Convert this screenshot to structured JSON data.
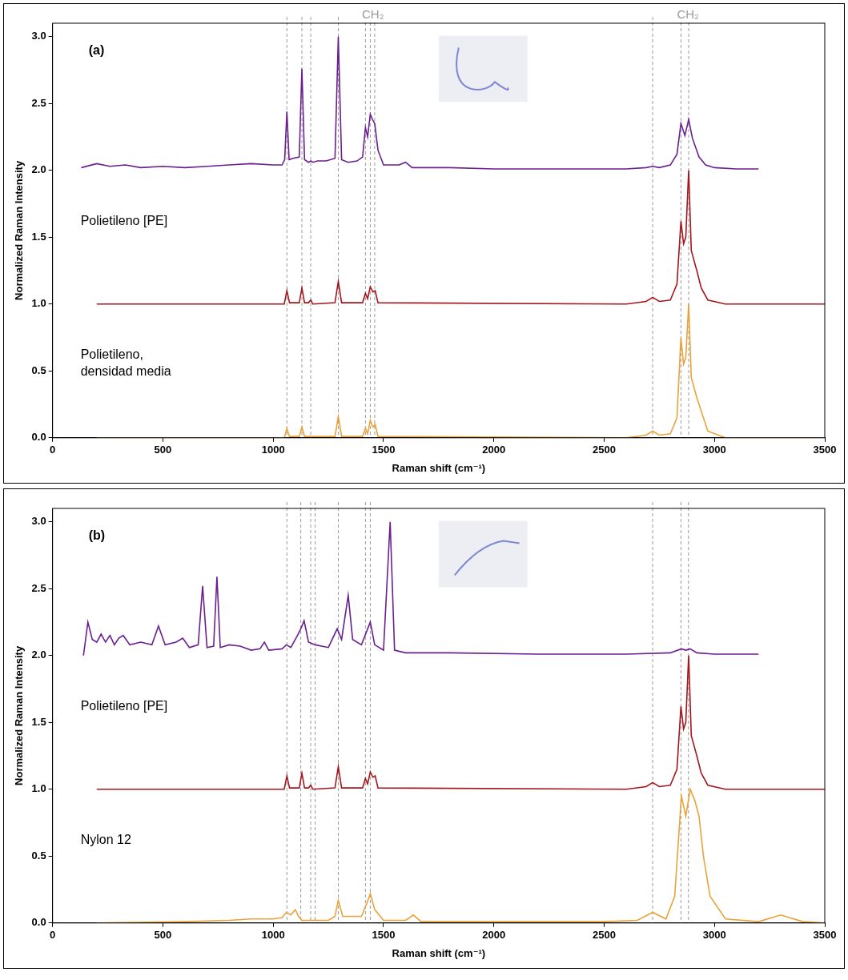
{
  "chart_data": [
    {
      "type": "line",
      "title": "(a)",
      "xlabel": "Raman shift (cm⁻¹)",
      "ylabel": "Normalized Raman Intensity",
      "xlim": [
        0,
        3500
      ],
      "xticks": [
        0,
        500,
        1000,
        1500,
        2000,
        2500,
        3000,
        3500
      ],
      "ylim": [
        0,
        3.1
      ],
      "yticks": [
        {
          "value": 0,
          "label": "0.0"
        },
        0.5,
        {
          "value": 1,
          "label": "1.0"
        },
        1.5,
        {
          "value": 2,
          "label": "2.0"
        },
        2.5,
        {
          "value": 3,
          "label": "3.0"
        }
      ],
      "grid": false,
      "reference_lines": [
        1062,
        1130,
        1170,
        1295,
        1418,
        1440,
        1460,
        2720,
        2848,
        2883
      ],
      "annotations": [
        {
          "text": "CH₂",
          "x": 1452
        },
        {
          "text": "CH₂",
          "x": 2880
        }
      ],
      "series": [
        {
          "color": "#6a1f8e",
          "x": [
            130,
            200,
            260,
            330,
            400,
            500,
            600,
            700,
            800,
            900,
            1000,
            1040,
            1052,
            1062,
            1072,
            1090,
            1118,
            1130,
            1142,
            1160,
            1170,
            1180,
            1200,
            1240,
            1280,
            1295,
            1310,
            1340,
            1380,
            1405,
            1418,
            1428,
            1440,
            1450,
            1460,
            1475,
            1500,
            1570,
            1600,
            1630,
            1800,
            2000,
            2200,
            2400,
            2600,
            2690,
            2720,
            2750,
            2800,
            2830,
            2848,
            2866,
            2883,
            2900,
            2930,
            2960,
            3000,
            3100,
            3200
          ],
          "values": [
            2.02,
            2.05,
            2.03,
            2.04,
            2.02,
            2.03,
            2.02,
            2.03,
            2.04,
            2.05,
            2.04,
            2.04,
            2.08,
            2.44,
            2.08,
            2.09,
            2.1,
            2.76,
            2.08,
            2.06,
            2.07,
            2.06,
            2.07,
            2.07,
            2.09,
            3.0,
            2.08,
            2.06,
            2.07,
            2.1,
            2.32,
            2.25,
            2.42,
            2.38,
            2.35,
            2.15,
            2.04,
            2.04,
            2.06,
            2.02,
            2.02,
            2.01,
            2.01,
            2.01,
            2.01,
            2.02,
            2.03,
            2.02,
            2.04,
            2.12,
            2.35,
            2.26,
            2.38,
            2.24,
            2.1,
            2.04,
            2.02,
            2.01,
            2.01
          ]
        },
        {
          "name": "Polietileno [PE]",
          "color": "#a3161c",
          "x": [
            200,
            500,
            1000,
            1050,
            1062,
            1074,
            1118,
            1130,
            1142,
            1160,
            1170,
            1180,
            1280,
            1295,
            1310,
            1405,
            1418,
            1428,
            1440,
            1452,
            1462,
            1475,
            2600,
            2690,
            2720,
            2750,
            2800,
            2830,
            2848,
            2860,
            2870,
            2883,
            2895,
            2920,
            2940,
            2970,
            3050,
            3500
          ],
          "values": [
            1.0,
            1.0,
            1.0,
            1.0,
            1.1,
            1.01,
            1.01,
            1.12,
            1.01,
            1.01,
            1.03,
            1.0,
            1.01,
            1.17,
            1.01,
            1.01,
            1.08,
            1.04,
            1.13,
            1.09,
            1.1,
            1.01,
            1.0,
            1.02,
            1.05,
            1.02,
            1.03,
            1.15,
            1.62,
            1.45,
            1.5,
            2.0,
            1.4,
            1.25,
            1.12,
            1.03,
            1.0,
            1.0
          ]
        },
        {
          "name": "Polietileno, densidad media",
          "color": "#eaa23a",
          "x": [
            200,
            500,
            1000,
            1050,
            1062,
            1074,
            1118,
            1130,
            1142,
            1280,
            1295,
            1310,
            1405,
            1418,
            1428,
            1440,
            1452,
            1462,
            1475,
            2600,
            2690,
            2720,
            2750,
            2800,
            2830,
            2848,
            2860,
            2870,
            2883,
            2895,
            2920,
            2940,
            2970,
            3050,
            3500
          ],
          "values": [
            0,
            0,
            0,
            0,
            0.07,
            0.01,
            0.01,
            0.08,
            0.01,
            0.01,
            0.16,
            0.01,
            0.01,
            0.07,
            0.03,
            0.13,
            0.08,
            0.1,
            0.01,
            0,
            0.02,
            0.05,
            0.02,
            0.03,
            0.15,
            0.75,
            0.55,
            0.6,
            1.0,
            0.45,
            0.3,
            0.2,
            0.05,
            0,
            0
          ]
        }
      ]
    },
    {
      "type": "line",
      "title": "(b)",
      "xlabel": "Raman shift (cm⁻¹)",
      "ylabel": "Normalized Raman Intensity",
      "xlim": [
        0,
        3500
      ],
      "xticks": [
        0,
        500,
        1000,
        1500,
        2000,
        2500,
        3000,
        3500
      ],
      "ylim": [
        0,
        3.1
      ],
      "yticks": [
        {
          "value": 0,
          "label": "0.0"
        },
        0.5,
        {
          "value": 1,
          "label": "1.0"
        },
        1.5,
        {
          "value": 2,
          "label": "2.0"
        },
        2.5,
        {
          "value": 3,
          "label": "3.0"
        }
      ],
      "grid": false,
      "reference_lines": [
        1062,
        1125,
        1170,
        1190,
        1295,
        1418,
        1440,
        2720,
        2848,
        2882
      ],
      "series": [
        {
          "color": "#6a1f8e",
          "x": [
            140,
            160,
            180,
            200,
            220,
            240,
            260,
            280,
            300,
            320,
            350,
            400,
            450,
            480,
            510,
            560,
            590,
            620,
            660,
            680,
            700,
            730,
            745,
            760,
            800,
            850,
            900,
            940,
            960,
            980,
            1040,
            1060,
            1080,
            1110,
            1125,
            1140,
            1160,
            1190,
            1250,
            1290,
            1310,
            1340,
            1360,
            1400,
            1440,
            1460,
            1500,
            1530,
            1550,
            1600,
            1800,
            2200,
            2600,
            2800,
            2850,
            2870,
            2890,
            2920,
            3000,
            3200
          ],
          "values": [
            2.0,
            2.25,
            2.12,
            2.1,
            2.16,
            2.1,
            2.15,
            2.08,
            2.13,
            2.15,
            2.08,
            2.1,
            2.08,
            2.22,
            2.08,
            2.1,
            2.13,
            2.06,
            2.08,
            2.52,
            2.06,
            2.07,
            2.59,
            2.06,
            2.08,
            2.07,
            2.04,
            2.05,
            2.1,
            2.04,
            2.05,
            2.08,
            2.06,
            2.15,
            2.2,
            2.26,
            2.1,
            2.08,
            2.06,
            2.2,
            2.12,
            2.45,
            2.12,
            2.08,
            2.25,
            2.08,
            2.04,
            3.0,
            2.04,
            2.02,
            2.02,
            2.01,
            2.01,
            2.02,
            2.05,
            2.04,
            2.05,
            2.02,
            2.01,
            2.01
          ]
        },
        {
          "name": "Polietileno [PE]",
          "color": "#a3161c",
          "x": [
            200,
            500,
            1000,
            1050,
            1062,
            1074,
            1118,
            1130,
            1142,
            1160,
            1170,
            1180,
            1280,
            1295,
            1310,
            1405,
            1418,
            1428,
            1440,
            1452,
            1462,
            1475,
            2600,
            2690,
            2720,
            2750,
            2800,
            2830,
            2848,
            2860,
            2870,
            2883,
            2895,
            2920,
            2940,
            2970,
            3050,
            3500
          ],
          "values": [
            1.0,
            1.0,
            1.0,
            1.0,
            1.1,
            1.01,
            1.01,
            1.12,
            1.01,
            1.01,
            1.03,
            1.0,
            1.01,
            1.17,
            1.01,
            1.01,
            1.08,
            1.04,
            1.13,
            1.09,
            1.1,
            1.01,
            1.0,
            1.02,
            1.05,
            1.02,
            1.03,
            1.15,
            1.62,
            1.45,
            1.5,
            2.0,
            1.4,
            1.25,
            1.12,
            1.03,
            1.0,
            1.0
          ]
        },
        {
          "name": "Nylon 12",
          "color": "#eaa23a",
          "x": [
            200,
            600,
            800,
            900,
            1000,
            1040,
            1060,
            1080,
            1100,
            1115,
            1130,
            1250,
            1280,
            1295,
            1315,
            1400,
            1425,
            1440,
            1460,
            1500,
            1600,
            1635,
            1670,
            2000,
            2500,
            2650,
            2720,
            2780,
            2820,
            2850,
            2870,
            2890,
            2910,
            2930,
            2950,
            2980,
            3050,
            3200,
            3300,
            3400,
            3500
          ],
          "values": [
            0,
            0.01,
            0.02,
            0.03,
            0.03,
            0.04,
            0.08,
            0.06,
            0.1,
            0.05,
            0.02,
            0.02,
            0.05,
            0.17,
            0.05,
            0.05,
            0.15,
            0.22,
            0.1,
            0.02,
            0.02,
            0.06,
            0.01,
            0.01,
            0.01,
            0.02,
            0.08,
            0.03,
            0.2,
            0.95,
            0.8,
            1.0,
            0.92,
            0.8,
            0.5,
            0.2,
            0.03,
            0.01,
            0.06,
            0.01,
            0
          ]
        }
      ]
    }
  ]
}
